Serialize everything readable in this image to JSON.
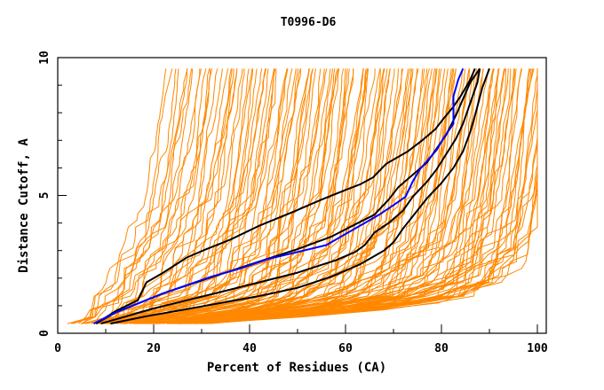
{
  "chart_data": {
    "type": "line",
    "title": "T0996-D6",
    "xlabel": "Percent of Residues (CA)",
    "ylabel": "Distance Cutoff, A",
    "xlim": [
      0,
      100
    ],
    "ylim": [
      0,
      10
    ],
    "x_ticks": [
      0,
      20,
      40,
      60,
      80,
      100
    ],
    "x_minor_ticks": [
      10,
      30,
      50,
      70,
      90
    ],
    "y_ticks": [
      0,
      5,
      10
    ],
    "y_minor_ticks": [
      1,
      2,
      3,
      4,
      6,
      7,
      8,
      9
    ],
    "grid": false,
    "legend": "none",
    "colors": {
      "background_models": "#ff8800",
      "highlighted_models": "#000000",
      "selected_model": "#0000ff"
    },
    "series": [
      {
        "name": "black-model-1",
        "color": "#000000",
        "x": [
          8,
          12,
          16.7,
          18.5,
          22,
          26.9,
          31,
          36,
          42,
          49,
          55,
          60,
          63,
          65.7,
          68.5,
          73,
          76,
          78.7,
          80.5,
          82.4,
          84,
          85,
          86,
          87
        ],
        "y": [
          0.35,
          0.8,
          1.2,
          1.85,
          2.2,
          2.75,
          3.05,
          3.4,
          3.9,
          4.4,
          4.85,
          5.2,
          5.4,
          5.65,
          6.15,
          6.6,
          7.0,
          7.4,
          7.8,
          8.2,
          8.6,
          8.9,
          9.2,
          9.6
        ]
      },
      {
        "name": "black-model-2",
        "color": "#000000",
        "x": [
          8,
          12,
          17,
          22,
          28,
          35,
          42,
          50,
          57,
          62,
          66,
          69,
          71,
          74,
          77,
          79,
          81,
          83,
          84.5,
          86,
          88
        ],
        "y": [
          0.35,
          0.75,
          1.1,
          1.45,
          1.8,
          2.2,
          2.6,
          3.05,
          3.5,
          3.95,
          4.3,
          4.85,
          5.3,
          5.75,
          6.2,
          6.7,
          7.2,
          7.9,
          8.5,
          9.1,
          9.6
        ]
      },
      {
        "name": "black-model-3",
        "color": "#000000",
        "x": [
          9,
          14,
          20,
          27,
          34,
          42,
          50,
          58,
          62,
          64,
          66,
          69,
          72,
          74,
          77,
          79,
          81,
          83,
          84.5,
          85.5,
          86.5,
          87.5,
          88
        ],
        "y": [
          0.35,
          0.6,
          0.9,
          1.2,
          1.5,
          1.85,
          2.2,
          2.65,
          2.95,
          3.2,
          3.65,
          4.0,
          4.45,
          4.95,
          5.5,
          5.95,
          6.5,
          7.05,
          7.6,
          8.1,
          8.6,
          9.1,
          9.6
        ]
      },
      {
        "name": "black-model-4",
        "color": "#000000",
        "x": [
          11,
          18,
          26,
          34,
          42,
          50,
          57,
          63,
          68,
          70,
          72,
          74.5,
          77,
          80,
          82.5,
          84.5,
          86,
          87.3,
          88.5,
          90
        ],
        "y": [
          0.35,
          0.6,
          0.85,
          1.1,
          1.35,
          1.65,
          2.05,
          2.5,
          3.0,
          3.3,
          3.8,
          4.35,
          4.9,
          5.45,
          6.0,
          6.6,
          7.3,
          8.1,
          8.9,
          9.6
        ]
      },
      {
        "name": "blue-model",
        "color": "#0000ff",
        "x": [
          7.5,
          12,
          17,
          22,
          27,
          32,
          38,
          44,
          50,
          56,
          60,
          64,
          67,
          70,
          72.5,
          74,
          75.5,
          77,
          79,
          80.5,
          82.5,
          82.5,
          83.5,
          84.5
        ],
        "y": [
          0.35,
          0.75,
          1.1,
          1.45,
          1.75,
          2.05,
          2.35,
          2.7,
          2.95,
          3.2,
          3.6,
          4.0,
          4.3,
          4.65,
          4.95,
          5.5,
          5.95,
          6.25,
          6.65,
          7.1,
          7.6,
          8.6,
          9.2,
          9.6
        ]
      }
    ],
    "background_series_note": "~150 orange model curves spanning x from ~4 to 100 at distance cutoffs 0.35 to 9.6",
    "background_series_envelope": {
      "leftmost": {
        "x": [
          4,
          6,
          9,
          12,
          14.5,
          16,
          17.5,
          19.5
        ],
        "y": [
          0.35,
          1.0,
          2.0,
          3.0,
          4.0,
          5.0,
          6.5,
          9.6
        ]
      },
      "rightmost": {
        "x": [
          30,
          50,
          70,
          85,
          92,
          96,
          98.5,
          100
        ],
        "y": [
          0.35,
          0.6,
          0.9,
          1.3,
          1.9,
          2.8,
          4.5,
          9.6
        ]
      }
    }
  }
}
